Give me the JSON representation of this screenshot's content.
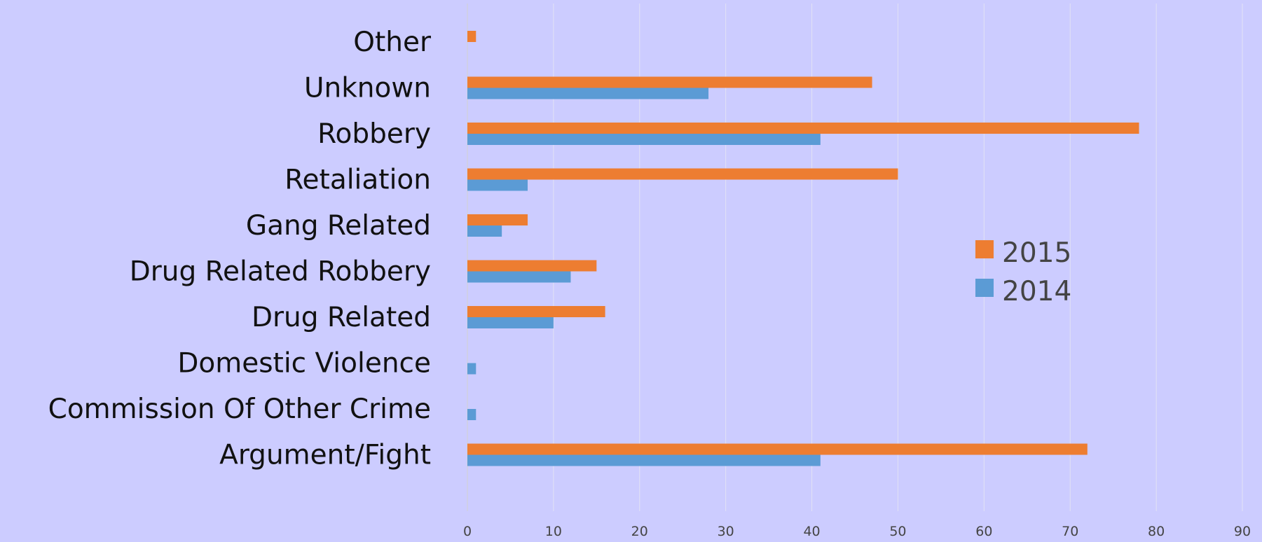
{
  "chart_data": {
    "type": "bar",
    "orientation": "horizontal",
    "title": "",
    "xlabel": "",
    "ylabel": "",
    "categories": [
      "Other",
      "Unknown",
      "Robbery",
      "Retaliation",
      "Gang Related",
      "Drug Related Robbery",
      "Drug Related",
      "Domestic Violence",
      "Commission Of Other Crime",
      "Argument/Fight"
    ],
    "series": [
      {
        "name": "2015",
        "color": "#ed7d31",
        "values": [
          1,
          47,
          78,
          50,
          7,
          15,
          16,
          0,
          0,
          72
        ]
      },
      {
        "name": "2014",
        "color": "#5b9bd5",
        "values": [
          0,
          28,
          41,
          7,
          4,
          12,
          10,
          1,
          1,
          41
        ]
      }
    ],
    "xlim": [
      0,
      90
    ],
    "xticks": [
      0,
      10,
      20,
      30,
      40,
      50,
      60,
      70,
      80,
      90
    ],
    "grid": "vertical",
    "legend_position": "right"
  },
  "legend": {
    "items": [
      {
        "label": "2015",
        "color": "#ed7d31"
      },
      {
        "label": "2014",
        "color": "#5b9bd5"
      }
    ]
  }
}
